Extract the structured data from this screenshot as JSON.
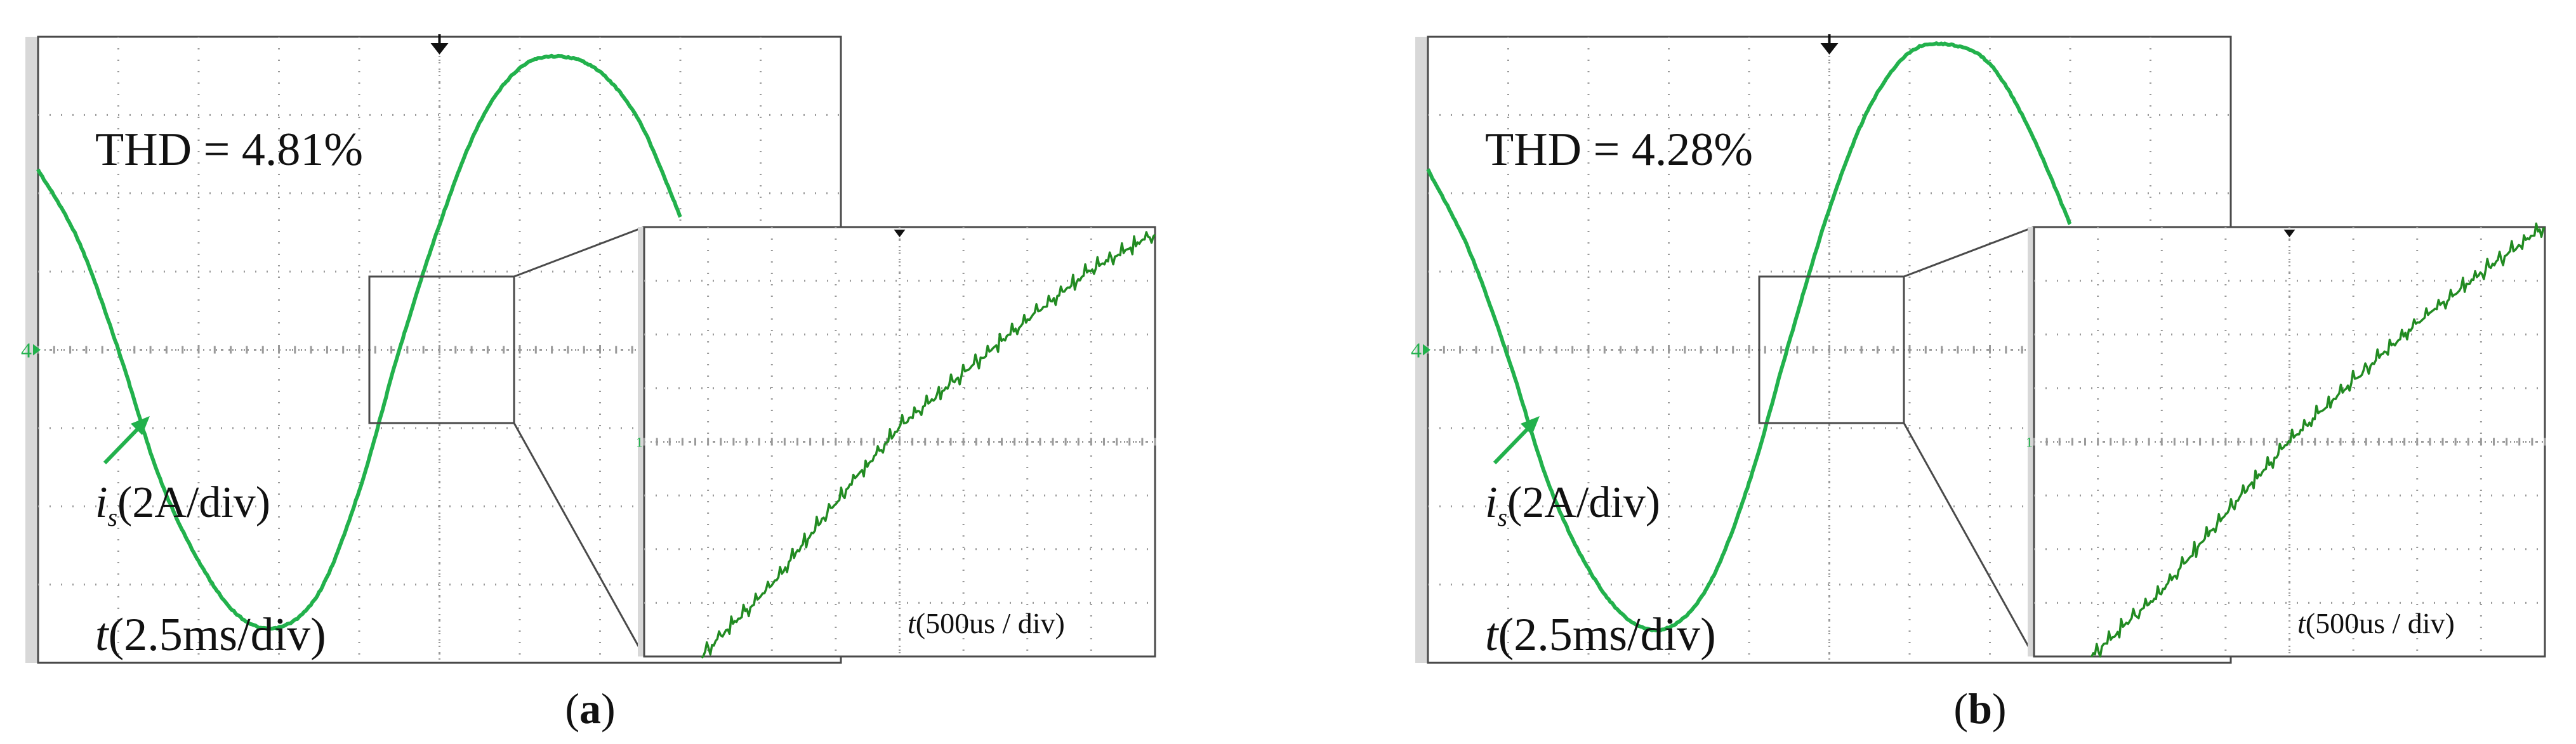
{
  "panels": [
    {
      "label_open": "(",
      "label_letter": "a",
      "label_close": ")",
      "thd_text": "THD = 4.81%",
      "signal_symbol": "i",
      "signal_subscript": "s",
      "signal_scale": "(2A/div)",
      "time_symbol": "t",
      "time_scale": "(2.5ms/div)",
      "zoom_time_symbol": "t",
      "zoom_time_scale": "(500us / div)",
      "marker_char": "4",
      "zoom_marker_char": "1"
    },
    {
      "label_open": "(",
      "label_letter": "b",
      "label_close": ")",
      "thd_text": "THD = 4.28%",
      "signal_symbol": "i",
      "signal_subscript": "s",
      "signal_scale": "(2A/div)",
      "time_symbol": "t",
      "time_scale": "(2.5ms/div)",
      "zoom_time_symbol": "t",
      "zoom_time_scale": "(500us / div)",
      "marker_char": "4",
      "zoom_marker_char": "1"
    }
  ],
  "colors": {
    "trace": "#22b14c",
    "zoom_trace": "#228b22",
    "grid": "#9a9a9a",
    "frame": "#4a4a4a",
    "left_bar": "#d8d8d8",
    "text": "#111111"
  },
  "chart_data": [
    {
      "type": "line",
      "title": "THD = 4.81%",
      "xlabel": "t(2.5ms/div)",
      "ylabel": "is(2A/div)",
      "x_unit": "div",
      "y_unit": "div",
      "xlim": [
        0,
        10
      ],
      "ylim": [
        -4,
        4
      ],
      "grid": true,
      "series": [
        {
          "x": [
            0,
            0.5,
            1.0,
            1.5,
            2.0,
            2.5,
            3.0,
            3.5,
            4.0,
            4.5,
            5.0,
            5.5,
            6.0,
            6.5,
            7.0,
            7.5,
            8.0
          ],
          "y": [
            2.3,
            1.4,
            0.0,
            -1.6,
            -2.7,
            -3.4,
            -3.55,
            -3.1,
            -1.8,
            0.0,
            1.6,
            2.9,
            3.6,
            3.75,
            3.55,
            2.9,
            1.7
          ]
        }
      ],
      "zoom_inset": {
        "xlim": [
          0,
          4
        ],
        "ylim": [
          -3,
          3
        ],
        "series": [
          {
            "x": [
              0.45,
              1.0,
              1.5,
              2.0,
              2.5,
              3.0,
              3.5,
              4.0
            ],
            "y": [
              -3.0,
              -2.0,
              -0.85,
              0.2,
              0.95,
              1.7,
              2.4,
              2.9
            ]
          }
        ],
        "xlabel": "t(500us / div)"
      }
    },
    {
      "type": "line",
      "title": "THD = 4.28%",
      "xlabel": "t(2.5ms/div)",
      "ylabel": "is(2A/div)",
      "x_unit": "div",
      "y_unit": "div",
      "xlim": [
        0,
        10
      ],
      "ylim": [
        -4,
        4
      ],
      "grid": true,
      "series": [
        {
          "x": [
            0,
            0.5,
            1.0,
            1.5,
            2.0,
            2.5,
            3.0,
            3.5,
            4.0,
            4.5,
            5.0,
            5.5,
            6.0,
            6.5,
            7.0,
            7.5,
            8.0
          ],
          "y": [
            2.3,
            1.3,
            -0.1,
            -1.7,
            -2.8,
            -3.45,
            -3.55,
            -3.0,
            -1.7,
            0.1,
            1.8,
            3.1,
            3.8,
            3.9,
            3.65,
            2.8,
            1.6
          ]
        }
      ],
      "zoom_inset": {
        "xlim": [
          0,
          4
        ],
        "ylim": [
          -3,
          3
        ],
        "series": [
          {
            "x": [
              0.45,
              1.0,
              1.5,
              2.0,
              2.5,
              3.0,
              3.5,
              4.0
            ],
            "y": [
              -3.0,
              -2.1,
              -1.0,
              0.0,
              0.85,
              1.65,
              2.35,
              3.0
            ]
          }
        ],
        "xlabel": "t(500us / div)"
      }
    }
  ]
}
